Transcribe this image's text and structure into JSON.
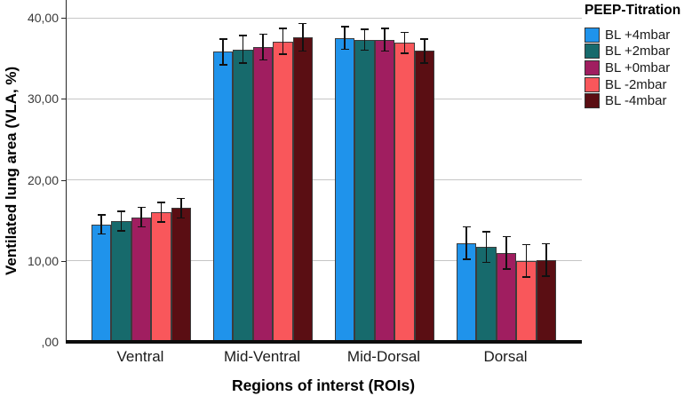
{
  "chart_data": {
    "type": "bar",
    "title": "",
    "xlabel": "Regions of interst (ROIs)",
    "ylabel": "Ventilated lung area (VLA, %)",
    "legend_title": "PEEP-Titration",
    "legend_position": "top-right",
    "grid": true,
    "error_bars": true,
    "ylim": [
      0,
      42.2
    ],
    "y_ticks": [
      {
        "label": ",00",
        "value": 0
      },
      {
        "label": "10,00",
        "value": 10
      },
      {
        "label": "20,00",
        "value": 20
      },
      {
        "label": "30,00",
        "value": 30
      },
      {
        "label": "40,00",
        "value": 40
      }
    ],
    "categories": [
      "Ventral",
      "Mid-Ventral",
      "Mid-Dorsal",
      "Dorsal"
    ],
    "series": [
      {
        "name": "BL +4mbar",
        "color": "#1F93EB",
        "values": [
          14.5,
          35.8,
          37.5,
          12.2
        ],
        "errors": [
          1.2,
          1.6,
          1.4,
          2.0
        ]
      },
      {
        "name": "BL +2mbar",
        "color": "#176A6C",
        "values": [
          14.9,
          36.1,
          37.3,
          11.7
        ],
        "errors": [
          1.2,
          1.7,
          1.3,
          1.9
        ]
      },
      {
        "name": "BL +0mbar",
        "color": "#A01E60",
        "values": [
          15.4,
          36.4,
          37.3,
          11.0
        ],
        "errors": [
          1.2,
          1.6,
          1.4,
          2.0
        ]
      },
      {
        "name": "BL -2mbar",
        "color": "#F9575B",
        "values": [
          16.0,
          37.1,
          36.9,
          10.0
        ],
        "errors": [
          1.2,
          1.6,
          1.3,
          2.0
        ]
      },
      {
        "name": "BL -4mbar",
        "color": "#5A0E13",
        "values": [
          16.5,
          37.6,
          35.9,
          10.1
        ],
        "errors": [
          1.2,
          1.7,
          1.5,
          2.0
        ]
      }
    ],
    "colors": {
      "gridline": "#C6C6C6",
      "axis": "#262626",
      "baseline": "#0D0D0D",
      "bar_border": "#3C3C3C",
      "error_bar": "#111111"
    }
  }
}
